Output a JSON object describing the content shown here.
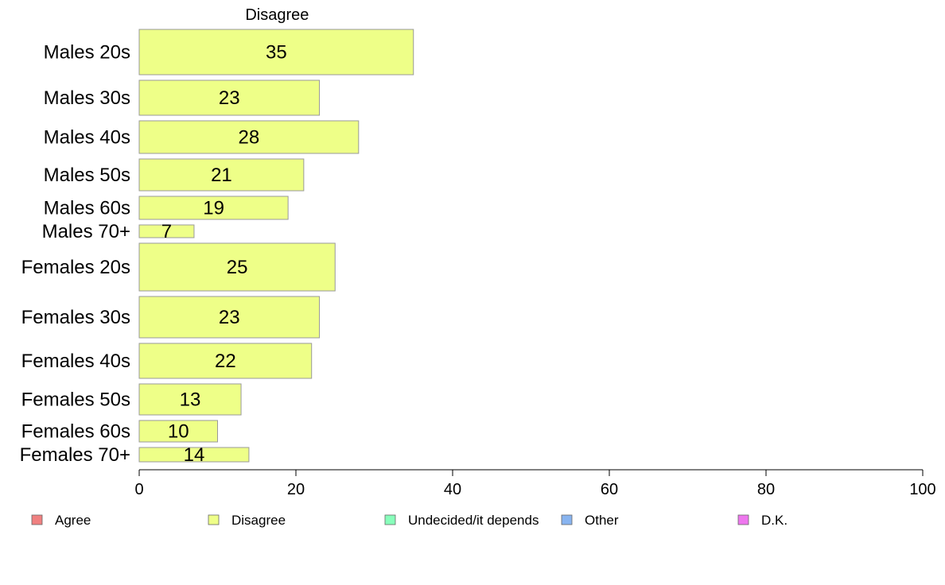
{
  "chart_data": {
    "type": "bar",
    "orientation": "horizontal",
    "title": "Disagree",
    "categories": [
      "Males 20s",
      "Males 30s",
      "Males 40s",
      "Males 50s",
      "Males 60s",
      "Males 70+",
      "Females 20s",
      "Females 30s",
      "Females 40s",
      "Females 50s",
      "Females 60s",
      "Females 70+"
    ],
    "series": [
      {
        "name": "Disagree",
        "values": [
          35,
          23,
          28,
          21,
          19,
          7,
          25,
          23,
          22,
          13,
          10,
          14
        ],
        "color": "#EEFF88"
      }
    ],
    "xlim": [
      0,
      100
    ],
    "xticks": [
      0,
      20,
      40,
      60,
      80,
      100
    ],
    "grid": false,
    "legend_placement": "bottom",
    "legend": [
      {
        "label": "Agree",
        "color": "#F08080"
      },
      {
        "label": "Disagree",
        "color": "#EEFF88"
      },
      {
        "label": "Undecided/it depends",
        "color": "#88FFBB"
      },
      {
        "label": "Other",
        "color": "#88B4F0"
      },
      {
        "label": "D.K.",
        "color": "#EE77EE"
      }
    ],
    "bar_border_color": "#999999"
  }
}
